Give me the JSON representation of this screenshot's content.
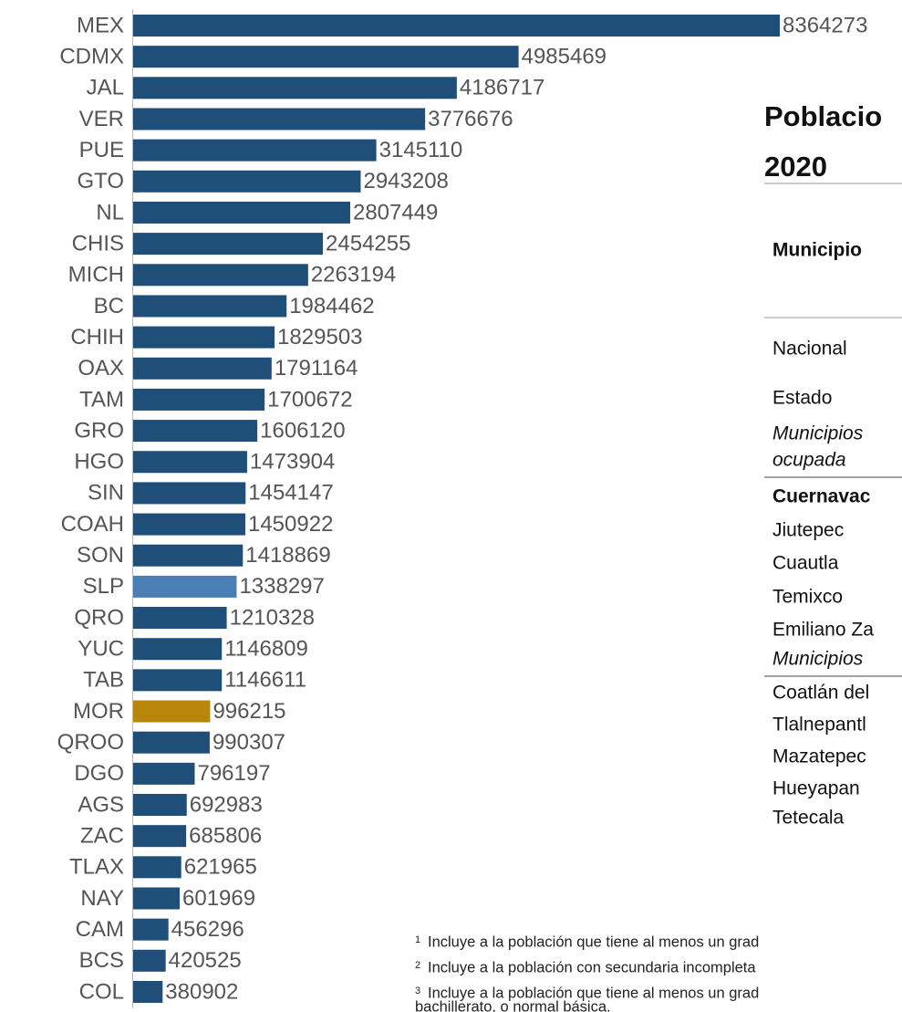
{
  "chart_data": {
    "type": "barh",
    "categories": [
      "MEX",
      "CDMX",
      "JAL",
      "VER",
      "PUE",
      "GTO",
      "NL",
      "CHIS",
      "MICH",
      "BC",
      "CHIH",
      "OAX",
      "TAM",
      "GRO",
      "HGO",
      "SIN",
      "COAH",
      "SON",
      "SLP",
      "QRO",
      "YUC",
      "TAB",
      "MOR",
      "QROO",
      "DGO",
      "AGS",
      "ZAC",
      "TLAX",
      "NAY",
      "CAM",
      "BCS",
      "COL"
    ],
    "values": [
      8364273,
      4985469,
      4186717,
      3776676,
      3145110,
      2943208,
      2807449,
      2454255,
      2263194,
      1984462,
      1829503,
      1791164,
      1700672,
      1606120,
      1473904,
      1454147,
      1450922,
      1418869,
      1338297,
      1210328,
      1146809,
      1146611,
      996215,
      990307,
      796197,
      692983,
      685806,
      621965,
      601969,
      456296,
      420525,
      380902
    ],
    "colors": [
      "#1f4e79",
      "#1f4e79",
      "#1f4e79",
      "#1f4e79",
      "#1f4e79",
      "#1f4e79",
      "#1f4e79",
      "#1f4e79",
      "#1f4e79",
      "#1f4e79",
      "#1f4e79",
      "#1f4e79",
      "#1f4e79",
      "#1f4e79",
      "#1f4e79",
      "#1f4e79",
      "#1f4e79",
      "#1f4e79",
      "#4a7fb5",
      "#1f4e79",
      "#1f4e79",
      "#1f4e79",
      "#b8860b",
      "#1f4e79",
      "#1f4e79",
      "#1f4e79",
      "#1f4e79",
      "#1f4e79",
      "#1f4e79",
      "#1f4e79",
      "#1f4e79",
      "#1f4e79"
    ]
  },
  "table": {
    "title": [
      "Poblacio",
      "2020"
    ],
    "header": "Municipio",
    "rows": [
      {
        "text": "Nacional",
        "style": "normal"
      },
      {
        "text": "Estado",
        "style": "normal"
      },
      {
        "text": "Municipios",
        "style": "italic"
      },
      {
        "text": "ocupada",
        "style": "italic"
      },
      {
        "text": "Cuernavac",
        "style": "bold"
      },
      {
        "text": "Jiutepec",
        "style": "normal"
      },
      {
        "text": "Cuautla",
        "style": "normal"
      },
      {
        "text": "Temixco",
        "style": "normal"
      },
      {
        "text": "Emiliano Za",
        "style": "normal"
      },
      {
        "text": "Municipios",
        "style": "italic"
      },
      {
        "text": "Coatlán del",
        "style": "normal"
      },
      {
        "text": "Tlalnepantl",
        "style": "normal"
      },
      {
        "text": "Mazatepec",
        "style": "normal"
      },
      {
        "text": "Hueyapan",
        "style": "normal"
      },
      {
        "text": "Tetecala",
        "style": "normal"
      }
    ]
  },
  "footnotes": [
    {
      "mark": "1",
      "text": "Incluye a la población que tiene al menos un grad"
    },
    {
      "mark": "2",
      "text": "Incluye a la población con secundaria incompleta"
    },
    {
      "mark": "3",
      "text": "Incluye a la población que tiene al menos un grad"
    },
    {
      "mark": null,
      "text": "bachillerato, o normal básica."
    }
  ]
}
